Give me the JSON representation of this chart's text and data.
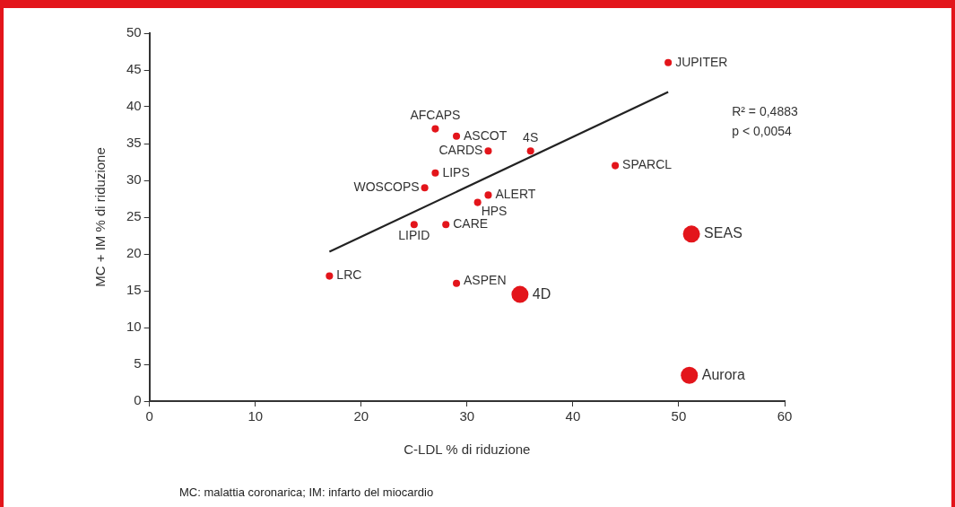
{
  "chart_data": {
    "type": "bubble",
    "xlabel": "C-LDL % di riduzione",
    "ylabel": "MC + IM % di riduzione",
    "xlim": [
      0,
      60
    ],
    "xticks": [
      0,
      10,
      20,
      30,
      40,
      50,
      60
    ],
    "ylim": [
      0,
      50
    ],
    "yticks": [
      0,
      5,
      10,
      15,
      20,
      25,
      30,
      35,
      40,
      45,
      50
    ],
    "grid": false,
    "legend": false,
    "marker": "circle",
    "series": [
      {
        "type": "bubble",
        "color": "#e3151b",
        "x": [
          49,
          27,
          29,
          32,
          36,
          27,
          26,
          32,
          31,
          25,
          28,
          44,
          17,
          29,
          35,
          51.2,
          51
        ],
        "values": [
          46,
          37,
          36,
          34,
          34,
          31,
          29,
          28,
          27,
          24,
          24,
          32,
          17,
          16,
          14.5,
          22.7,
          3.5
        ],
        "sizes": [
          0.18,
          0.18,
          0.18,
          0.18,
          0.18,
          0.18,
          0.18,
          0.18,
          0.18,
          0.18,
          0.18,
          0.18,
          0.18,
          0.18,
          1,
          1,
          1
        ]
      },
      {
        "type": "line",
        "color": "#222222",
        "x": [
          17,
          49
        ],
        "values": [
          20.3,
          42
        ],
        "marker": "none",
        "line_style": "solid"
      }
    ],
    "annotations": [
      "R² = 0,4883",
      "p < 0,0054",
      "MC: malattia coronarica; IM: infarto del miocardio",
      {
        "text": "JUPITER",
        "x": 49,
        "y": 46
      },
      {
        "text": "AFCAPS",
        "x": 27,
        "y": 37
      },
      {
        "text": "ASCOT",
        "x": 29,
        "y": 36
      },
      {
        "text": "CARDS",
        "x": 32,
        "y": 34
      },
      {
        "text": "4S",
        "x": 36,
        "y": 34
      },
      {
        "text": "LIPS",
        "x": 27,
        "y": 31
      },
      {
        "text": "WOSCOPS",
        "x": 26,
        "y": 29
      },
      {
        "text": "ALERT",
        "x": 32,
        "y": 28
      },
      {
        "text": "HPS",
        "x": 31,
        "y": 27
      },
      {
        "text": "LIPID",
        "x": 25,
        "y": 24
      },
      {
        "text": "CARE",
        "x": 28,
        "y": 24
      },
      {
        "text": "SPARCL",
        "x": 44,
        "y": 32
      },
      {
        "text": "LRC",
        "x": 17,
        "y": 17
      },
      {
        "text": "ASPEN",
        "x": 29,
        "y": 16
      },
      {
        "text": "4D",
        "x": 35,
        "y": 14.5
      },
      {
        "text": "SEAS",
        "x": 51.2,
        "y": 22.7
      },
      {
        "text": "Aurora",
        "x": 51,
        "y": 3.5
      }
    ]
  }
}
